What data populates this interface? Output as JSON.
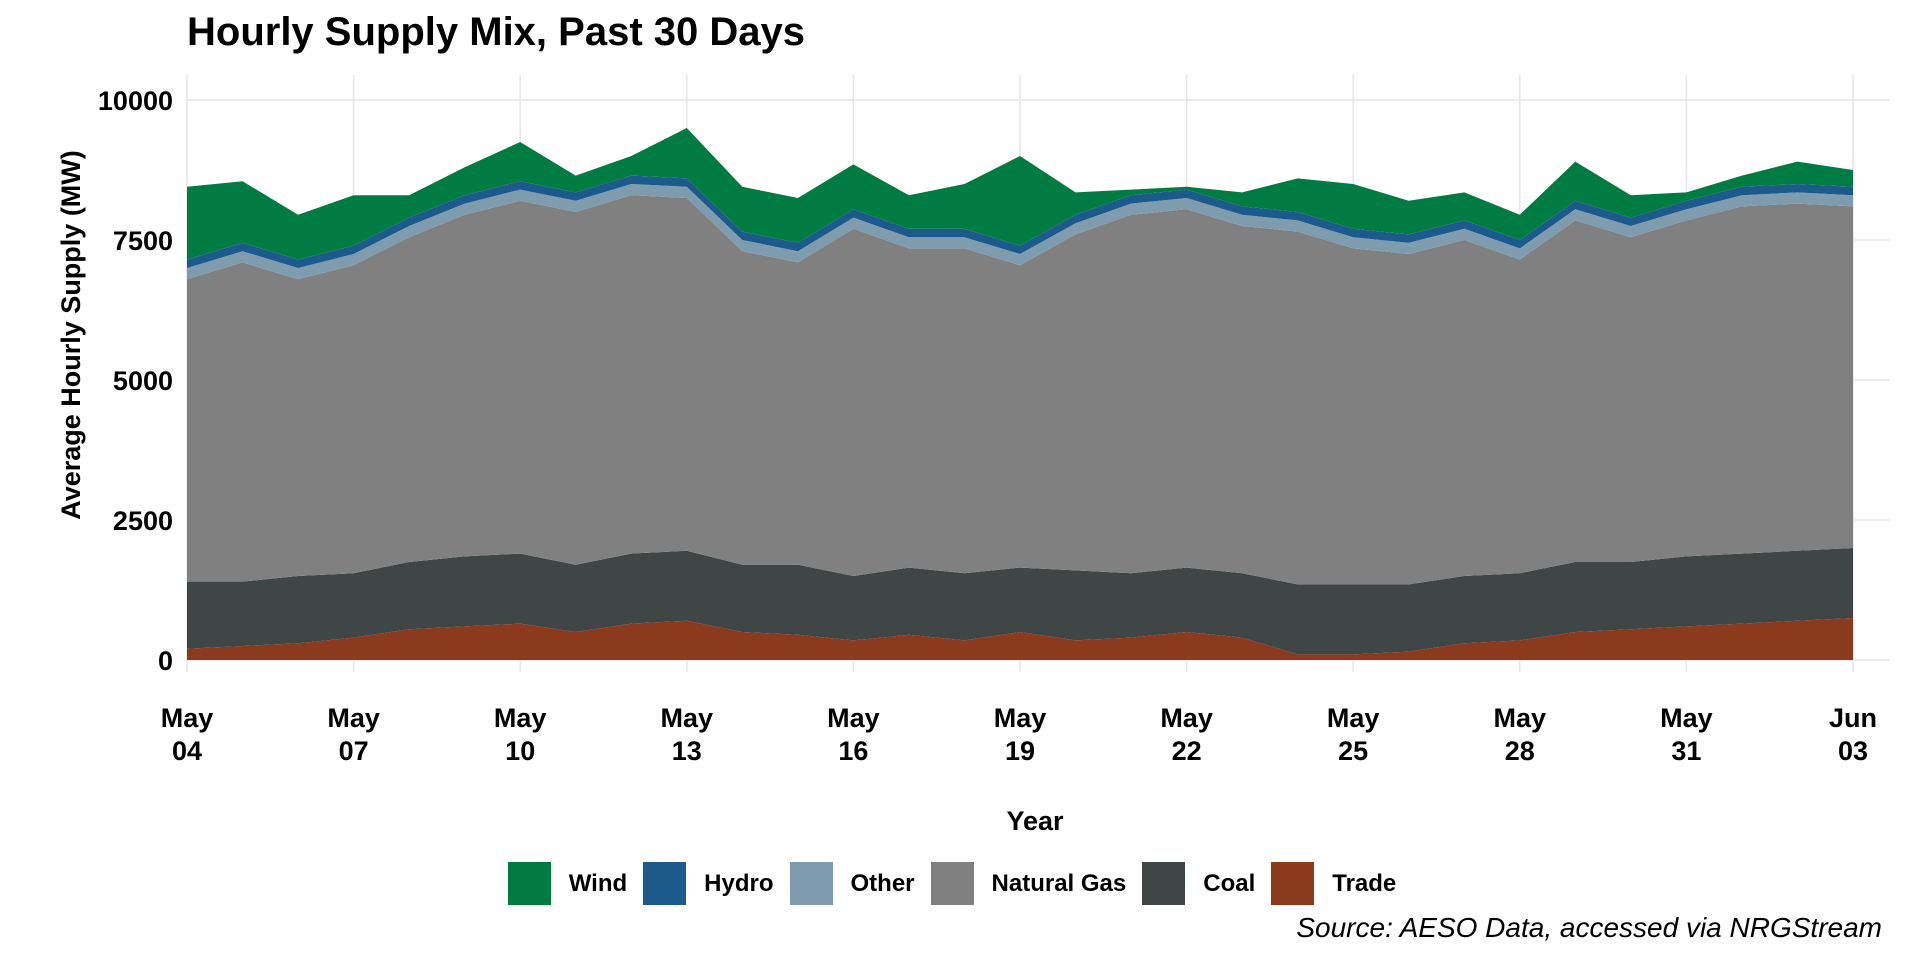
{
  "chart_data": {
    "type": "area",
    "stacked": true,
    "title": "Hourly Supply Mix, Past 30 Days",
    "xlabel": "Year",
    "ylabel": "Average Hourly Supply (MW)",
    "caption": "Source: AESO Data, accessed via NRGStream",
    "ylim": [
      0,
      10000
    ],
    "yticks": [
      0,
      2500,
      5000,
      7500,
      10000
    ],
    "xlim": [
      "2023-05-04",
      "2023-06-03T16:00"
    ],
    "xticks": [
      {
        "date": "2023-05-04",
        "line1": "May",
        "line2": "04"
      },
      {
        "date": "2023-05-07",
        "line1": "May",
        "line2": "07"
      },
      {
        "date": "2023-05-10",
        "line1": "May",
        "line2": "10"
      },
      {
        "date": "2023-05-13",
        "line1": "May",
        "line2": "13"
      },
      {
        "date": "2023-05-16",
        "line1": "May",
        "line2": "16"
      },
      {
        "date": "2023-05-19",
        "line1": "May",
        "line2": "19"
      },
      {
        "date": "2023-05-22",
        "line1": "May",
        "line2": "22"
      },
      {
        "date": "2023-05-25",
        "line1": "May",
        "line2": "25"
      },
      {
        "date": "2023-05-28",
        "line1": "May",
        "line2": "28"
      },
      {
        "date": "2023-05-31",
        "line1": "May",
        "line2": "31"
      },
      {
        "date": "2023-06-03",
        "line1": "Jun",
        "line2": "03"
      }
    ],
    "grid": true,
    "legend_position": "bottom",
    "x": [
      "2023-05-04",
      "2023-05-05",
      "2023-05-06",
      "2023-05-07",
      "2023-05-08",
      "2023-05-09",
      "2023-05-10",
      "2023-05-11",
      "2023-05-12",
      "2023-05-13",
      "2023-05-14",
      "2023-05-15",
      "2023-05-16",
      "2023-05-17",
      "2023-05-18",
      "2023-05-19",
      "2023-05-20",
      "2023-05-21",
      "2023-05-22",
      "2023-05-23",
      "2023-05-24",
      "2023-05-25",
      "2023-05-26",
      "2023-05-27",
      "2023-05-28",
      "2023-05-29",
      "2023-05-30",
      "2023-05-31",
      "2023-06-01",
      "2023-06-02",
      "2023-06-03"
    ],
    "series": [
      {
        "name": "Trade",
        "color": "#8B3A1E",
        "values": [
          200,
          250,
          300,
          400,
          550,
          600,
          650,
          500,
          650,
          700,
          500,
          450,
          350,
          450,
          350,
          500,
          350,
          400,
          500,
          400,
          100,
          100,
          150,
          300,
          350,
          500,
          550,
          600,
          650,
          700,
          750
        ]
      },
      {
        "name": "Coal",
        "color": "#404546",
        "values": [
          1200,
          1150,
          1200,
          1150,
          1200,
          1250,
          1250,
          1200,
          1250,
          1250,
          1200,
          1250,
          1150,
          1200,
          1200,
          1150,
          1250,
          1150,
          1150,
          1150,
          1250,
          1250,
          1200,
          1200,
          1200,
          1250,
          1200,
          1250,
          1250,
          1250,
          1250
        ]
      },
      {
        "name": "Natural Gas",
        "color": "#808080",
        "values": [
          5400,
          5700,
          5300,
          5500,
          5800,
          6100,
          6300,
          6300,
          6400,
          6300,
          5600,
          5400,
          6200,
          5700,
          5800,
          5400,
          6000,
          6400,
          6400,
          6200,
          6300,
          6000,
          5900,
          6000,
          5600,
          6100,
          5800,
          6000,
          6200,
          6200,
          6100
        ]
      },
      {
        "name": "Other",
        "color": "#7F9BAE",
        "values": [
          200,
          200,
          200,
          200,
          200,
          200,
          200,
          200,
          200,
          200,
          200,
          200,
          200,
          200,
          200,
          200,
          200,
          200,
          200,
          200,
          200,
          200,
          200,
          200,
          200,
          200,
          200,
          200,
          200,
          200,
          200
        ]
      },
      {
        "name": "Hydro",
        "color": "#1B5A8A",
        "values": [
          150,
          150,
          150,
          150,
          150,
          150,
          150,
          150,
          150,
          150,
          150,
          150,
          150,
          150,
          150,
          150,
          150,
          150,
          150,
          150,
          150,
          150,
          150,
          150,
          150,
          150,
          150,
          150,
          150,
          150,
          150
        ]
      },
      {
        "name": "Wind",
        "color": "#007C42",
        "values": [
          1300,
          1100,
          800,
          900,
          400,
          500,
          700,
          300,
          350,
          900,
          800,
          800,
          800,
          600,
          800,
          1600,
          400,
          100,
          50,
          250,
          600,
          800,
          600,
          500,
          450,
          700,
          400,
          150,
          200,
          400,
          300
        ]
      }
    ],
    "legend": [
      "Wind",
      "Hydro",
      "Other",
      "Natural Gas",
      "Coal",
      "Trade"
    ]
  }
}
